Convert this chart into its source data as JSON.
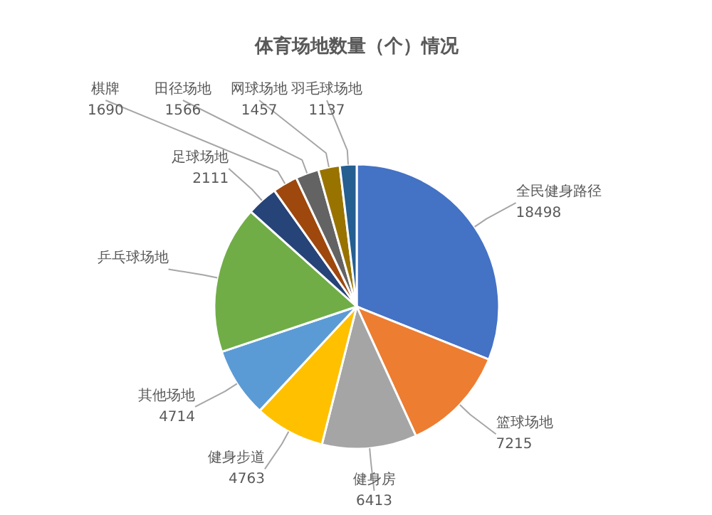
{
  "chart_data": {
    "type": "pie",
    "title": "体育场地数量（个）情况",
    "categories": [
      "全民健身路径",
      "篮球场地",
      "健身房",
      "健身步道",
      "其他场地",
      "乒乓球场地",
      "足球场地",
      "棋牌",
      "田径场地",
      "网球场地",
      "羽毛球场地"
    ],
    "values": [
      18498,
      7215,
      6413,
      4763,
      4714,
      10000,
      2111,
      1690,
      1566,
      1457,
      1137
    ],
    "value_labels": [
      "18498",
      "7215",
      "6413",
      "4763",
      "4714",
      null,
      "2111",
      "1690",
      "1566",
      "1457",
      "1137"
    ],
    "colors": [
      "#4472c4",
      "#ed7d31",
      "#a5a5a5",
      "#ffc000",
      "#5b9bd5",
      "#70ad47",
      "#264478",
      "#9e480e",
      "#636363",
      "#997300",
      "#255e91"
    ]
  }
}
